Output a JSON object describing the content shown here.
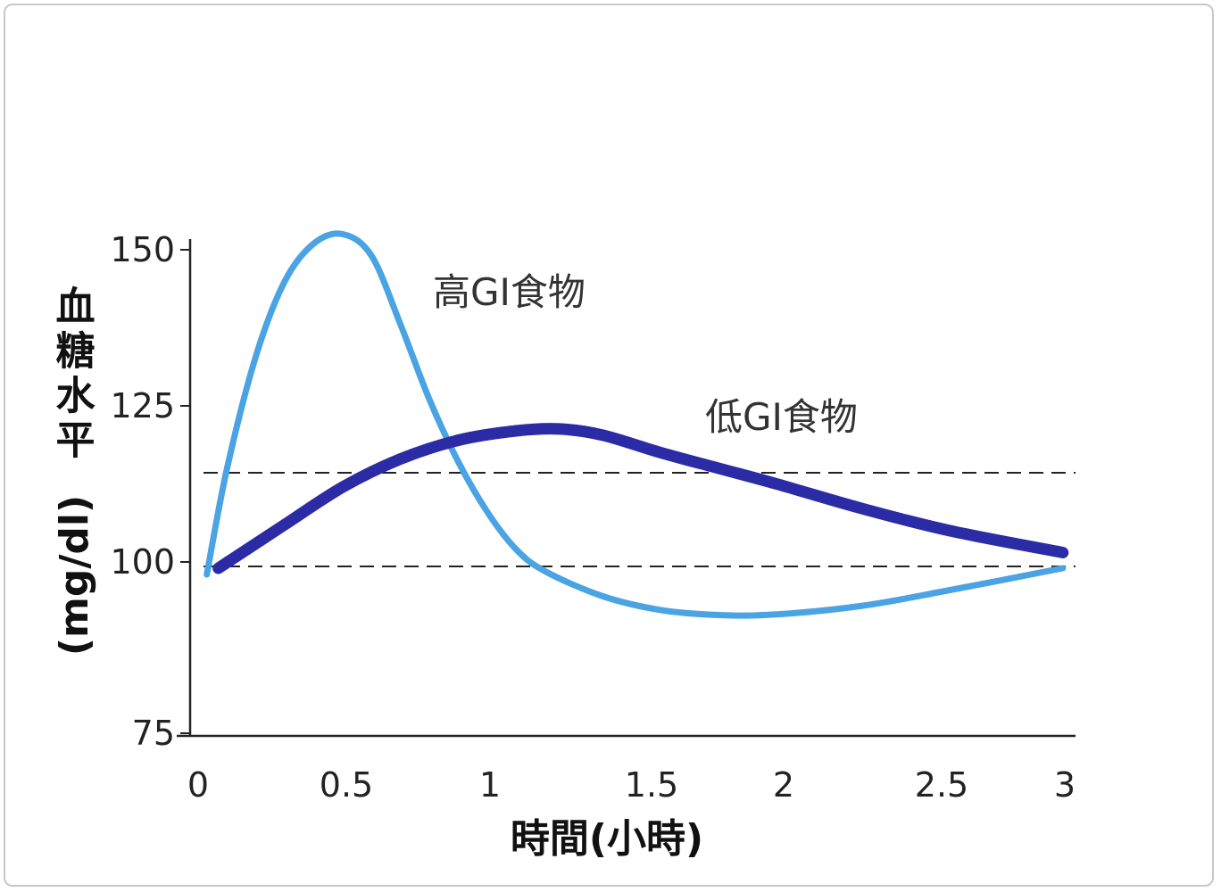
{
  "chart_data": {
    "type": "line",
    "title": "",
    "xlabel": "時間(小時)",
    "ylabel_main": "血糖水平",
    "ylabel_unit": "(mg/dl)",
    "xlim": [
      0,
      3
    ],
    "ylim": [
      75,
      150
    ],
    "x_ticks": [
      0,
      0.5,
      1,
      1.5,
      2,
      2.5,
      3
    ],
    "x_tick_labels": [
      "0",
      "0.5",
      "1",
      "1.5",
      "2",
      "2.5",
      "3"
    ],
    "y_ticks": [
      75,
      100,
      125,
      150
    ],
    "y_tick_labels": [
      "75",
      "100",
      "125",
      "150"
    ],
    "reference_lines": [
      115,
      100
    ],
    "grid": false,
    "series": [
      {
        "name": "高GI食物",
        "color": "#4aa3e2",
        "points": [
          [
            0.03,
            98
          ],
          [
            0.1,
            115
          ],
          [
            0.2,
            133
          ],
          [
            0.3,
            145
          ],
          [
            0.4,
            151
          ],
          [
            0.5,
            152.5
          ],
          [
            0.6,
            149
          ],
          [
            0.7,
            138
          ],
          [
            0.8,
            126
          ],
          [
            0.9,
            116
          ],
          [
            1.0,
            108
          ],
          [
            1.1,
            102
          ],
          [
            1.2,
            98.5
          ],
          [
            1.4,
            94.5
          ],
          [
            1.6,
            92.3
          ],
          [
            1.8,
            91.5
          ],
          [
            2.0,
            91.6
          ],
          [
            2.3,
            93
          ],
          [
            2.6,
            95.5
          ],
          [
            2.99,
            99
          ]
        ]
      },
      {
        "name": "低GI食物",
        "color": "#2b2ba6",
        "points": [
          [
            0.07,
            99
          ],
          [
            0.3,
            106
          ],
          [
            0.5,
            112
          ],
          [
            0.7,
            116.5
          ],
          [
            0.9,
            119.5
          ],
          [
            1.1,
            121
          ],
          [
            1.25,
            121.3
          ],
          [
            1.4,
            120.3
          ],
          [
            1.6,
            117.5
          ],
          [
            1.8,
            115
          ],
          [
            2.0,
            112.5
          ],
          [
            2.3,
            108.5
          ],
          [
            2.6,
            105
          ],
          [
            2.99,
            101.5
          ]
        ]
      }
    ]
  }
}
